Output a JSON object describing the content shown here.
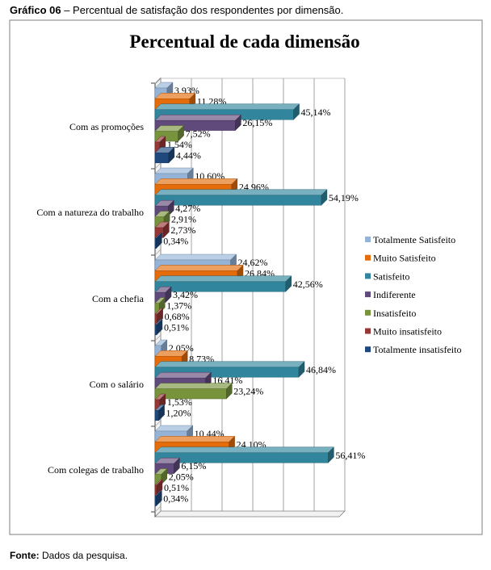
{
  "caption": {
    "label": "Gráfico 06",
    "text": " – Percentual de satisfação dos respondentes por dimensão."
  },
  "source": {
    "label": "Fonte:",
    "text": " Dados da pesquisa."
  },
  "chart_data": {
    "type": "bar",
    "orientation": "horizontal",
    "style": "3d-clustered",
    "title": "Percentual de cada dimensão",
    "xlabel": "",
    "ylabel": "",
    "xlim": [
      0,
      60
    ],
    "grid": true,
    "legend_position": "right",
    "categories": [
      "Com as promoções",
      "Com a natureza do trabalho",
      "Com a chefia",
      "Com o salário",
      "Com colegas de trabalho"
    ],
    "series": [
      {
        "name": "Totalmente Satisfeito",
        "color": "#95B3D7",
        "values": [
          3.93,
          10.6,
          24.62,
          2.05,
          10.44
        ],
        "labels": [
          "3,93%",
          "10,60%",
          "24,62%",
          "2,05%",
          "10,44%"
        ]
      },
      {
        "name": "Muito Satisfeito",
        "color": "#E46C0A",
        "values": [
          11.28,
          24.96,
          26.84,
          8.73,
          24.1
        ],
        "labels": [
          "11,28%",
          "24,96%",
          "26,84%",
          "8,73%",
          "24,10%"
        ]
      },
      {
        "name": "Satisfeito",
        "color": "#31859C",
        "values": [
          45.14,
          54.19,
          42.56,
          46.84,
          56.41
        ],
        "labels": [
          "45,14%",
          "54,19%",
          "42,56%",
          "46,84%",
          "56,41%"
        ]
      },
      {
        "name": "Indiferente",
        "color": "#604A7B",
        "values": [
          26.15,
          4.27,
          3.42,
          16.41,
          6.15
        ],
        "labels": [
          "26,15%",
          "4,27%",
          "3,42%",
          "16,41%",
          "6,15%"
        ]
      },
      {
        "name": "Insatisfeito",
        "color": "#77933C",
        "values": [
          7.52,
          2.91,
          1.37,
          23.24,
          2.05
        ],
        "labels": [
          "7,52%",
          "2,91%",
          "1,37%",
          "23,24%",
          "2,05%"
        ]
      },
      {
        "name": "Muito insatisfeito",
        "color": "#953735",
        "values": [
          1.54,
          2.73,
          0.68,
          1.53,
          0.51
        ],
        "labels": [
          "1,54%",
          "2,73%",
          "0,68%",
          "1,53%",
          "0,51%"
        ]
      },
      {
        "name": "Totalmente insatisfeito",
        "color": "#1F497D",
        "values": [
          4.44,
          0.34,
          0.51,
          1.2,
          0.34
        ],
        "labels": [
          "4,44%",
          "0,34%",
          "0,51%",
          "1,20%",
          "0,34%"
        ]
      }
    ]
  }
}
